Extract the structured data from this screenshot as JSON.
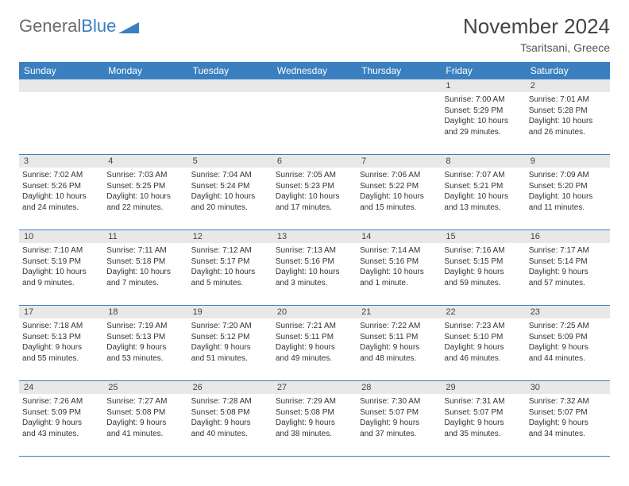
{
  "brand": {
    "part1": "General",
    "part2": "Blue"
  },
  "title": "November 2024",
  "subtitle": "Tsaritsani, Greece",
  "colors": {
    "header_bg": "#3a7fbf",
    "daynum_bg": "#e8e8e8",
    "logo_grey": "#6b6b6b",
    "logo_blue": "#3a7fbf"
  },
  "weekdays": [
    "Sunday",
    "Monday",
    "Tuesday",
    "Wednesday",
    "Thursday",
    "Friday",
    "Saturday"
  ],
  "weeks": [
    [
      null,
      null,
      null,
      null,
      null,
      {
        "n": "1",
        "sunrise": "Sunrise: 7:00 AM",
        "sunset": "Sunset: 5:29 PM",
        "dl1": "Daylight: 10 hours",
        "dl2": "and 29 minutes."
      },
      {
        "n": "2",
        "sunrise": "Sunrise: 7:01 AM",
        "sunset": "Sunset: 5:28 PM",
        "dl1": "Daylight: 10 hours",
        "dl2": "and 26 minutes."
      }
    ],
    [
      {
        "n": "3",
        "sunrise": "Sunrise: 7:02 AM",
        "sunset": "Sunset: 5:26 PM",
        "dl1": "Daylight: 10 hours",
        "dl2": "and 24 minutes."
      },
      {
        "n": "4",
        "sunrise": "Sunrise: 7:03 AM",
        "sunset": "Sunset: 5:25 PM",
        "dl1": "Daylight: 10 hours",
        "dl2": "and 22 minutes."
      },
      {
        "n": "5",
        "sunrise": "Sunrise: 7:04 AM",
        "sunset": "Sunset: 5:24 PM",
        "dl1": "Daylight: 10 hours",
        "dl2": "and 20 minutes."
      },
      {
        "n": "6",
        "sunrise": "Sunrise: 7:05 AM",
        "sunset": "Sunset: 5:23 PM",
        "dl1": "Daylight: 10 hours",
        "dl2": "and 17 minutes."
      },
      {
        "n": "7",
        "sunrise": "Sunrise: 7:06 AM",
        "sunset": "Sunset: 5:22 PM",
        "dl1": "Daylight: 10 hours",
        "dl2": "and 15 minutes."
      },
      {
        "n": "8",
        "sunrise": "Sunrise: 7:07 AM",
        "sunset": "Sunset: 5:21 PM",
        "dl1": "Daylight: 10 hours",
        "dl2": "and 13 minutes."
      },
      {
        "n": "9",
        "sunrise": "Sunrise: 7:09 AM",
        "sunset": "Sunset: 5:20 PM",
        "dl1": "Daylight: 10 hours",
        "dl2": "and 11 minutes."
      }
    ],
    [
      {
        "n": "10",
        "sunrise": "Sunrise: 7:10 AM",
        "sunset": "Sunset: 5:19 PM",
        "dl1": "Daylight: 10 hours",
        "dl2": "and 9 minutes."
      },
      {
        "n": "11",
        "sunrise": "Sunrise: 7:11 AM",
        "sunset": "Sunset: 5:18 PM",
        "dl1": "Daylight: 10 hours",
        "dl2": "and 7 minutes."
      },
      {
        "n": "12",
        "sunrise": "Sunrise: 7:12 AM",
        "sunset": "Sunset: 5:17 PM",
        "dl1": "Daylight: 10 hours",
        "dl2": "and 5 minutes."
      },
      {
        "n": "13",
        "sunrise": "Sunrise: 7:13 AM",
        "sunset": "Sunset: 5:16 PM",
        "dl1": "Daylight: 10 hours",
        "dl2": "and 3 minutes."
      },
      {
        "n": "14",
        "sunrise": "Sunrise: 7:14 AM",
        "sunset": "Sunset: 5:16 PM",
        "dl1": "Daylight: 10 hours",
        "dl2": "and 1 minute."
      },
      {
        "n": "15",
        "sunrise": "Sunrise: 7:16 AM",
        "sunset": "Sunset: 5:15 PM",
        "dl1": "Daylight: 9 hours",
        "dl2": "and 59 minutes."
      },
      {
        "n": "16",
        "sunrise": "Sunrise: 7:17 AM",
        "sunset": "Sunset: 5:14 PM",
        "dl1": "Daylight: 9 hours",
        "dl2": "and 57 minutes."
      }
    ],
    [
      {
        "n": "17",
        "sunrise": "Sunrise: 7:18 AM",
        "sunset": "Sunset: 5:13 PM",
        "dl1": "Daylight: 9 hours",
        "dl2": "and 55 minutes."
      },
      {
        "n": "18",
        "sunrise": "Sunrise: 7:19 AM",
        "sunset": "Sunset: 5:13 PM",
        "dl1": "Daylight: 9 hours",
        "dl2": "and 53 minutes."
      },
      {
        "n": "19",
        "sunrise": "Sunrise: 7:20 AM",
        "sunset": "Sunset: 5:12 PM",
        "dl1": "Daylight: 9 hours",
        "dl2": "and 51 minutes."
      },
      {
        "n": "20",
        "sunrise": "Sunrise: 7:21 AM",
        "sunset": "Sunset: 5:11 PM",
        "dl1": "Daylight: 9 hours",
        "dl2": "and 49 minutes."
      },
      {
        "n": "21",
        "sunrise": "Sunrise: 7:22 AM",
        "sunset": "Sunset: 5:11 PM",
        "dl1": "Daylight: 9 hours",
        "dl2": "and 48 minutes."
      },
      {
        "n": "22",
        "sunrise": "Sunrise: 7:23 AM",
        "sunset": "Sunset: 5:10 PM",
        "dl1": "Daylight: 9 hours",
        "dl2": "and 46 minutes."
      },
      {
        "n": "23",
        "sunrise": "Sunrise: 7:25 AM",
        "sunset": "Sunset: 5:09 PM",
        "dl1": "Daylight: 9 hours",
        "dl2": "and 44 minutes."
      }
    ],
    [
      {
        "n": "24",
        "sunrise": "Sunrise: 7:26 AM",
        "sunset": "Sunset: 5:09 PM",
        "dl1": "Daylight: 9 hours",
        "dl2": "and 43 minutes."
      },
      {
        "n": "25",
        "sunrise": "Sunrise: 7:27 AM",
        "sunset": "Sunset: 5:08 PM",
        "dl1": "Daylight: 9 hours",
        "dl2": "and 41 minutes."
      },
      {
        "n": "26",
        "sunrise": "Sunrise: 7:28 AM",
        "sunset": "Sunset: 5:08 PM",
        "dl1": "Daylight: 9 hours",
        "dl2": "and 40 minutes."
      },
      {
        "n": "27",
        "sunrise": "Sunrise: 7:29 AM",
        "sunset": "Sunset: 5:08 PM",
        "dl1": "Daylight: 9 hours",
        "dl2": "and 38 minutes."
      },
      {
        "n": "28",
        "sunrise": "Sunrise: 7:30 AM",
        "sunset": "Sunset: 5:07 PM",
        "dl1": "Daylight: 9 hours",
        "dl2": "and 37 minutes."
      },
      {
        "n": "29",
        "sunrise": "Sunrise: 7:31 AM",
        "sunset": "Sunset: 5:07 PM",
        "dl1": "Daylight: 9 hours",
        "dl2": "and 35 minutes."
      },
      {
        "n": "30",
        "sunrise": "Sunrise: 7:32 AM",
        "sunset": "Sunset: 5:07 PM",
        "dl1": "Daylight: 9 hours",
        "dl2": "and 34 minutes."
      }
    ]
  ]
}
